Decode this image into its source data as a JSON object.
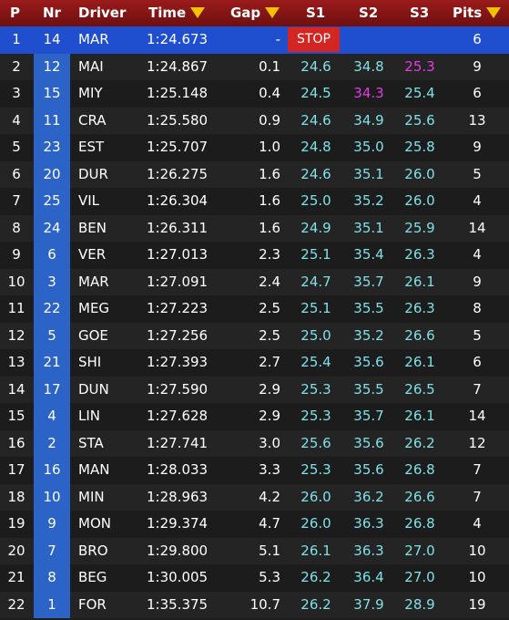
{
  "header": {
    "p": "P",
    "nr": "Nr",
    "driver": "Driver",
    "time": "Time",
    "gap": "Gap",
    "s1": "S1",
    "s2": "S2",
    "s3": "S3",
    "pits": "Pits"
  },
  "colors": {
    "header": "#7f1414",
    "leader_row": "#1f4fcf",
    "nr_bg": "#2c63c7",
    "sector": "#7fe0e6",
    "fastest_sector": "#e23ce2",
    "stop": "#d32622",
    "sort_arrow": "#f2c200"
  },
  "rows": [
    {
      "p": "1",
      "nr": "14",
      "driver": "MAR",
      "time": "1:24.673",
      "gap": "-",
      "s1": "STOP",
      "s2": "",
      "s3": "",
      "pits": "6"
    },
    {
      "p": "2",
      "nr": "12",
      "driver": "MAI",
      "time": "1:24.867",
      "gap": "0.1",
      "s1": "24.6",
      "s2": "34.8",
      "s3": "25.3",
      "pits": "9"
    },
    {
      "p": "3",
      "nr": "15",
      "driver": "MIY",
      "time": "1:25.148",
      "gap": "0.4",
      "s1": "24.5",
      "s2": "34.3",
      "s3": "25.4",
      "pits": "6"
    },
    {
      "p": "4",
      "nr": "11",
      "driver": "CRA",
      "time": "1:25.580",
      "gap": "0.9",
      "s1": "24.6",
      "s2": "34.9",
      "s3": "25.6",
      "pits": "13"
    },
    {
      "p": "5",
      "nr": "23",
      "driver": "EST",
      "time": "1:25.707",
      "gap": "1.0",
      "s1": "24.8",
      "s2": "35.0",
      "s3": "25.8",
      "pits": "9"
    },
    {
      "p": "6",
      "nr": "20",
      "driver": "DUR",
      "time": "1:26.275",
      "gap": "1.6",
      "s1": "24.6",
      "s2": "35.1",
      "s3": "26.0",
      "pits": "5"
    },
    {
      "p": "7",
      "nr": "25",
      "driver": "VIL",
      "time": "1:26.304",
      "gap": "1.6",
      "s1": "25.0",
      "s2": "35.2",
      "s3": "26.0",
      "pits": "4"
    },
    {
      "p": "8",
      "nr": "24",
      "driver": "BEN",
      "time": "1:26.311",
      "gap": "1.6",
      "s1": "24.9",
      "s2": "35.1",
      "s3": "25.9",
      "pits": "14"
    },
    {
      "p": "9",
      "nr": "6",
      "driver": "VER",
      "time": "1:27.013",
      "gap": "2.3",
      "s1": "25.1",
      "s2": "35.4",
      "s3": "26.3",
      "pits": "4"
    },
    {
      "p": "10",
      "nr": "3",
      "driver": "MAR",
      "time": "1:27.091",
      "gap": "2.4",
      "s1": "24.7",
      "s2": "35.7",
      "s3": "26.1",
      "pits": "9"
    },
    {
      "p": "11",
      "nr": "22",
      "driver": "MEG",
      "time": "1:27.223",
      "gap": "2.5",
      "s1": "25.1",
      "s2": "35.5",
      "s3": "26.3",
      "pits": "8"
    },
    {
      "p": "12",
      "nr": "5",
      "driver": "GOE",
      "time": "1:27.256",
      "gap": "2.5",
      "s1": "25.0",
      "s2": "35.2",
      "s3": "26.6",
      "pits": "5"
    },
    {
      "p": "13",
      "nr": "21",
      "driver": "SHI",
      "time": "1:27.393",
      "gap": "2.7",
      "s1": "25.4",
      "s2": "35.6",
      "s3": "26.1",
      "pits": "6"
    },
    {
      "p": "14",
      "nr": "17",
      "driver": "DUN",
      "time": "1:27.590",
      "gap": "2.9",
      "s1": "25.3",
      "s2": "35.5",
      "s3": "26.5",
      "pits": "7"
    },
    {
      "p": "15",
      "nr": "4",
      "driver": "LIN",
      "time": "1:27.628",
      "gap": "2.9",
      "s1": "25.3",
      "s2": "35.7",
      "s3": "26.1",
      "pits": "14"
    },
    {
      "p": "16",
      "nr": "2",
      "driver": "STA",
      "time": "1:27.741",
      "gap": "3.0",
      "s1": "25.6",
      "s2": "35.6",
      "s3": "26.2",
      "pits": "12"
    },
    {
      "p": "17",
      "nr": "16",
      "driver": "MAN",
      "time": "1:28.033",
      "gap": "3.3",
      "s1": "25.3",
      "s2": "35.6",
      "s3": "26.8",
      "pits": "7"
    },
    {
      "p": "18",
      "nr": "10",
      "driver": "MIN",
      "time": "1:28.963",
      "gap": "4.2",
      "s1": "26.0",
      "s2": "36.2",
      "s3": "26.6",
      "pits": "7"
    },
    {
      "p": "19",
      "nr": "9",
      "driver": "MON",
      "time": "1:29.374",
      "gap": "4.7",
      "s1": "26.0",
      "s2": "36.3",
      "s3": "26.8",
      "pits": "4"
    },
    {
      "p": "20",
      "nr": "7",
      "driver": "BRO",
      "time": "1:29.800",
      "gap": "5.1",
      "s1": "26.1",
      "s2": "36.3",
      "s3": "27.0",
      "pits": "10"
    },
    {
      "p": "21",
      "nr": "8",
      "driver": "BEG",
      "time": "1:30.005",
      "gap": "5.3",
      "s1": "26.2",
      "s2": "36.4",
      "s3": "27.0",
      "pits": "10"
    },
    {
      "p": "22",
      "nr": "1",
      "driver": "FOR",
      "time": "1:35.375",
      "gap": "10.7",
      "s1": "26.2",
      "s2": "37.9",
      "s3": "28.9",
      "pits": "19"
    }
  ]
}
